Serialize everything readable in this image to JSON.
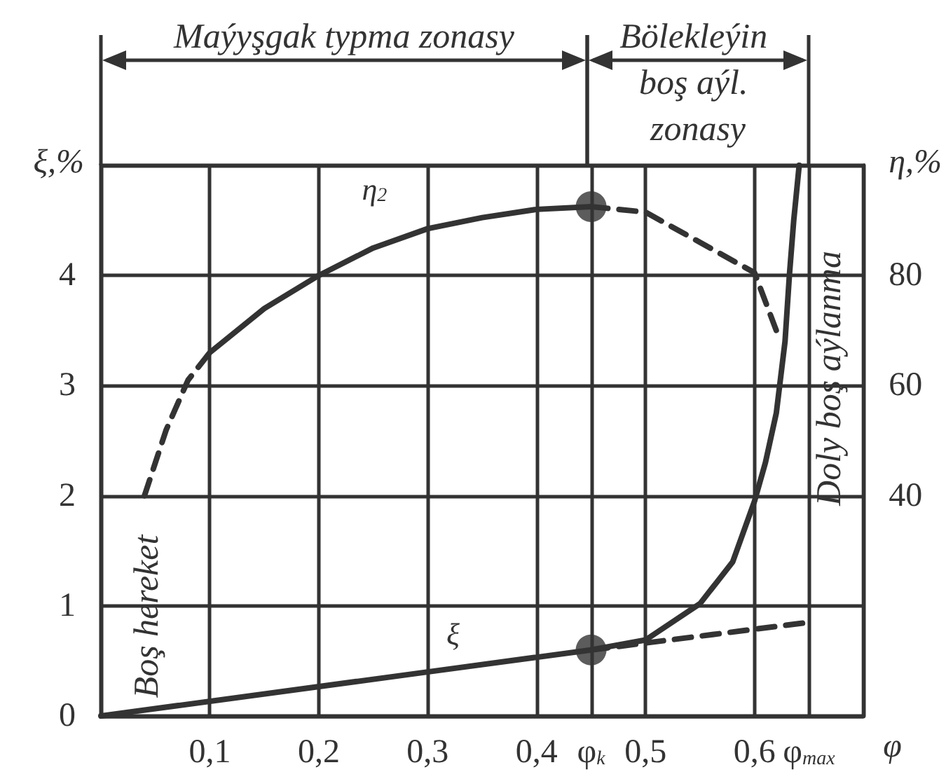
{
  "chart_data": {
    "type": "line",
    "xlabel": "φ",
    "ylabel": "ξ,%",
    "y2label": "η,%",
    "xlim": [
      0,
      0.7
    ],
    "xticks": [
      {
        "value": 0.1,
        "label": "0,1"
      },
      {
        "value": 0.2,
        "label": "0,2"
      },
      {
        "value": 0.3,
        "label": "0,3"
      },
      {
        "value": 0.4,
        "label": "0,4"
      },
      {
        "value": 0.45,
        "label": "φ$_{k}$"
      },
      {
        "value": 0.5,
        "label": "0,5"
      },
      {
        "value": 0.6,
        "label": "0,6"
      },
      {
        "value": 0.65,
        "label": "φ$_{max}$"
      }
    ],
    "ylim": [
      0,
      5
    ],
    "yticks": [
      0,
      1,
      2,
      3,
      4,
      {
        "value": 5,
        "label": null
      }
    ],
    "y2lim": [
      0,
      100
    ],
    "y2ticks": [
      40,
      60,
      80
    ],
    "grid": true,
    "series": [
      {
        "axis": "y2",
        "color": "#333333",
        "line_style": "dashed",
        "marker": "none",
        "x": [
          0.04,
          0.06,
          0.08,
          0.1
        ],
        "values": [
          40,
          52,
          61,
          66
        ]
      },
      {
        "name": "η$_{2}$",
        "axis": "y2",
        "color": "#333333",
        "line_style": "solid",
        "marker": "none",
        "x": [
          0.1,
          0.15,
          0.2,
          0.25,
          0.3,
          0.35,
          0.4,
          0.45
        ],
        "values": [
          66,
          74,
          80,
          85,
          88.5,
          90.5,
          92,
          92.5
        ]
      },
      {
        "axis": "y2",
        "color": "#333333",
        "line_style": "dashed",
        "marker": "none",
        "x": [
          0.45,
          0.5,
          0.55,
          0.6,
          0.62
        ],
        "values": [
          92.5,
          91.5,
          86,
          80.5,
          70
        ]
      },
      {
        "name": "ξ",
        "color": "#333333",
        "line_style": "solid",
        "marker": "none",
        "x": [
          0,
          0.3,
          0.45,
          0.5,
          0.55,
          0.58,
          0.6,
          0.61,
          0.62,
          0.628,
          0.632,
          0.636,
          0.641
        ],
        "values": [
          0,
          0.4,
          0.6,
          0.69,
          1.02,
          1.4,
          1.95,
          2.3,
          2.75,
          3.4,
          4,
          4.5,
          5
        ]
      },
      {
        "color": "#333333",
        "line_style": "dashed",
        "marker": "none",
        "x": [
          0.45,
          0.65
        ],
        "values": [
          0.6,
          0.85
        ]
      },
      {
        "type": "scatter",
        "color": "#333333",
        "marker": "circle",
        "x": [
          0.45
        ],
        "values": [
          0.6
        ]
      },
      {
        "type": "scatter",
        "axis": "y2",
        "color": "#333333",
        "marker": "circle",
        "x": [
          0.45
        ],
        "values": [
          92.5
        ]
      }
    ],
    "annotations": [
      "Maýyşgak typma zonasy",
      "Bölekleýin boş aýl. zonasy",
      "Boş hereket",
      "Doly boş aýlanma"
    ]
  }
}
